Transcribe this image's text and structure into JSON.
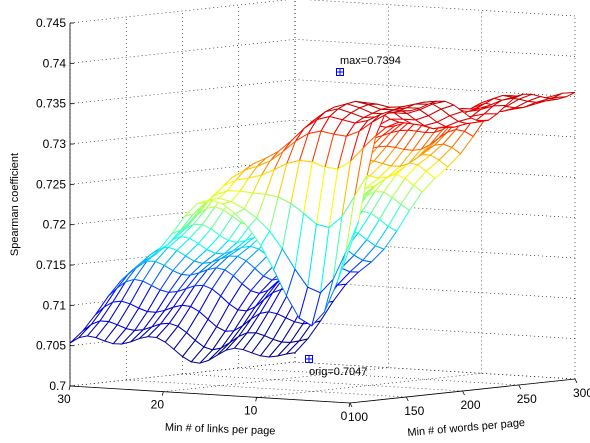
{
  "chart_data": {
    "type": "surface",
    "title": "",
    "xlabel": "Min # of words per page",
    "ylabel": "Min # of links per page",
    "zlabel": "Spearman coefficient",
    "x_ticks": [
      "100",
      "150",
      "200",
      "250",
      "300"
    ],
    "y_ticks": [
      "30",
      "20",
      "10",
      "0"
    ],
    "z_ticks": [
      "0.7",
      "0.705",
      "0.71",
      "0.715",
      "0.72",
      "0.725",
      "0.73",
      "0.735",
      "0.74",
      "0.745"
    ],
    "xlim": [
      100,
      300
    ],
    "ylim": [
      0,
      30
    ],
    "zlim": [
      0.7,
      0.745
    ],
    "grid": true,
    "colormap": [
      "#00008f",
      "#0000ff",
      "#00ffff",
      "#ffff00",
      "#ff0000",
      "#800000"
    ],
    "colormap_range": [
      0.704,
      0.7394
    ],
    "surface_model": {
      "x_grid": [
        100,
        300
      ],
      "y_grid": [
        0,
        30
      ],
      "note_of_shape": [
        "ridge along min-links = 0..6, falling toward min-links = 30",
        "plateau near min-words 150..230, dip at 250, rise to 300"
      ]
    },
    "annotations": [
      {
        "label": "max=0.7394",
        "x": 150,
        "y": 14,
        "z": 0.7394
      },
      {
        "label": "orig=0.7047",
        "x": 100,
        "y": 5,
        "z": 0.7047
      }
    ]
  }
}
